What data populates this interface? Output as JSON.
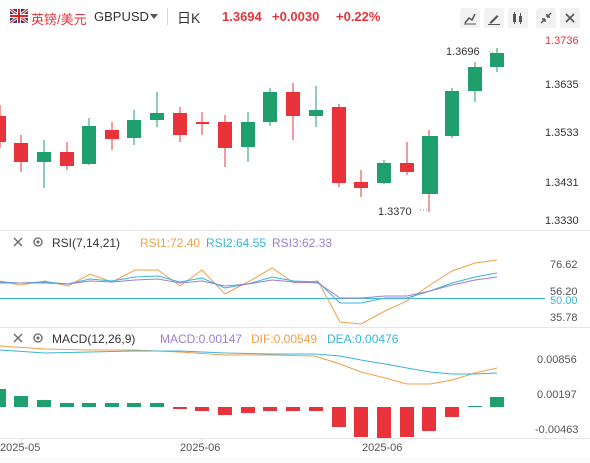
{
  "header": {
    "symbol_cn": "英镑/美元",
    "symbol_en": "GBPUSD",
    "period": "日K",
    "last_price": "1.3694",
    "change": "+0.0030",
    "change_pct": "+0.22%",
    "buttons": [
      "trend-line-icon",
      "draw-icon",
      "indicator-icon",
      "collapse-icon",
      "close-icon"
    ]
  },
  "main_chart": {
    "price_axis": [
      "1.3736",
      "1.3635",
      "1.3533",
      "1.3431",
      "1.3330"
    ],
    "price_axis_color": "#e8333b",
    "high_marker": "1.3696",
    "low_marker": "1.3370",
    "up_color": "#1f9e6e",
    "down_color": "#e8333b"
  },
  "rsi": {
    "title": "RSI(7,14,21)",
    "rsi1": "RSI1:72.40",
    "rsi2": "RSI2:64.55",
    "rsi3": "RSI3:62.33",
    "axis": [
      "76.62",
      "56.20",
      "50.00",
      "35.78"
    ],
    "colors": {
      "rsi1": "#f0a04b",
      "rsi2": "#3bb4d8",
      "rsi3": "#9b7fd4"
    }
  },
  "macd": {
    "title": "MACD(12,26,9)",
    "macd": "MACD:0.00147",
    "dif": "DIF:0.00549",
    "dea": "DEA:0.00476",
    "axis": [
      "0.00856",
      "0.00197",
      "-0.00463"
    ],
    "colors": {
      "macd": "#9b7fd4",
      "dif": "#f0a04b",
      "dea": "#3bb4d8"
    }
  },
  "time_axis": [
    "2025-05",
    "2025-06",
    "2025-06"
  ]
}
